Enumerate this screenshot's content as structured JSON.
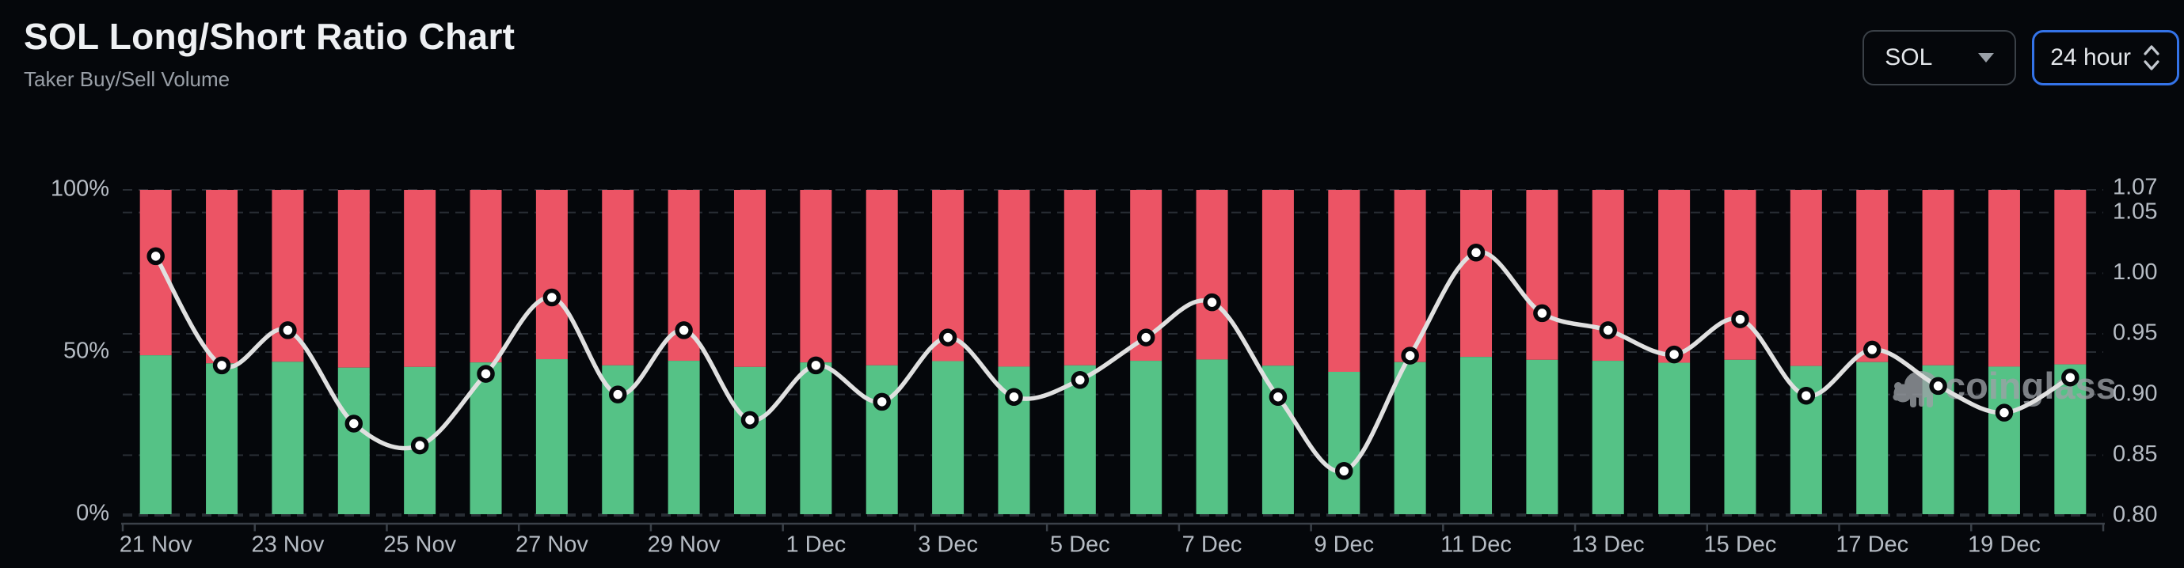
{
  "header": {
    "title": "SOL Long/Short Ratio Chart",
    "subtitle": "Taker Buy/Sell Volume"
  },
  "controls": {
    "symbol": {
      "value": "SOL"
    },
    "interval": {
      "value": "24 hour"
    }
  },
  "watermark": {
    "text": "coinglass"
  },
  "colors": {
    "background": "#05070b",
    "buy_green": "#55c286",
    "sell_red": "#ec5465",
    "ratio_line": "#e0e0e0",
    "dot_fill": "#ffffff",
    "dot_stroke": "#06080b",
    "grid": "#282d34",
    "axis_line": "#3b4149",
    "axis_text": "#b6bcc4",
    "accent_blue": "#3473e8"
  },
  "chart_data": {
    "type": "bar",
    "subtype": "100%-stacked bars with ratio line overlay",
    "categories": [
      "21 Nov",
      "22 Nov",
      "23 Nov",
      "24 Nov",
      "25 Nov",
      "26 Nov",
      "27 Nov",
      "28 Nov",
      "29 Nov",
      "30 Nov",
      "1 Dec",
      "2 Dec",
      "3 Dec",
      "4 Dec",
      "5 Dec",
      "6 Dec",
      "7 Dec",
      "8 Dec",
      "9 Dec",
      "10 Dec",
      "11 Dec",
      "12 Dec",
      "13 Dec",
      "14 Dec",
      "15 Dec",
      "16 Dec",
      "17 Dec",
      "18 Dec",
      "19 Dec",
      "20 Dec"
    ],
    "x_tick_labels": [
      "21 Nov",
      "23 Nov",
      "25 Nov",
      "27 Nov",
      "29 Nov",
      "1 Dec",
      "3 Dec",
      "5 Dec",
      "7 Dec",
      "9 Dec",
      "11 Dec",
      "13 Dec",
      "15 Dec",
      "17 Dec",
      "19 Dec"
    ],
    "series": [
      {
        "name": "Taker Buy Volume %",
        "type": "bar",
        "stack": "volume",
        "color": "#55c286",
        "values": [
          49.0,
          46.5,
          47.0,
          45.2,
          45.4,
          46.8,
          47.8,
          45.9,
          47.3,
          45.4,
          46.8,
          45.9,
          47.2,
          45.5,
          45.9,
          47.3,
          47.7,
          45.8,
          43.9,
          46.9,
          48.5,
          47.6,
          47.3,
          46.7,
          47.6,
          45.7,
          46.9,
          45.9,
          45.5,
          46.2
        ]
      },
      {
        "name": "Taker Sell Volume %",
        "type": "bar",
        "stack": "volume",
        "color": "#ec5465",
        "values": [
          51.0,
          53.5,
          53.0,
          54.8,
          54.6,
          53.2,
          52.2,
          54.1,
          52.7,
          54.6,
          53.2,
          54.1,
          52.8,
          54.5,
          54.1,
          52.7,
          52.3,
          54.2,
          56.1,
          53.1,
          51.5,
          52.4,
          52.7,
          53.3,
          52.4,
          54.3,
          53.1,
          54.1,
          54.5,
          53.8
        ]
      },
      {
        "name": "Long/Short Ratio",
        "type": "line",
        "axis": "right",
        "color": "#e0e0e0",
        "values": [
          1.014,
          0.924,
          0.953,
          0.876,
          0.858,
          0.917,
          0.98,
          0.9,
          0.953,
          0.879,
          0.924,
          0.894,
          0.947,
          0.898,
          0.912,
          0.947,
          0.976,
          0.898,
          0.837,
          0.932,
          1.017,
          0.967,
          0.953,
          0.933,
          0.962,
          0.899,
          0.937,
          0.907,
          0.885,
          0.914
        ]
      }
    ],
    "left_axis": {
      "tick_labels": [
        "100%",
        "50%",
        "0%"
      ],
      "range": [
        0,
        100
      ]
    },
    "right_axis": {
      "tick_labels": [
        "1.07",
        "1.05",
        "1.00",
        "0.95",
        "0.90",
        "0.85",
        "0.80"
      ],
      "range": [
        0.8,
        1.07
      ]
    },
    "grid": "horizontal dashed",
    "legend": "none",
    "title": "SOL Long/Short Ratio Chart",
    "xlabel": "",
    "ylabel": ""
  }
}
